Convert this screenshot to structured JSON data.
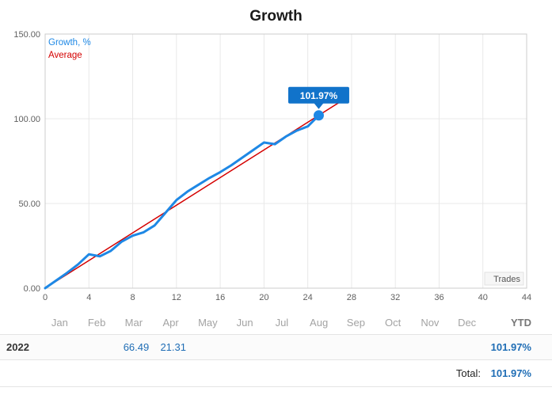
{
  "title": "Growth",
  "legend": {
    "growth": "Growth, %",
    "average": "Average"
  },
  "axis_label": "Trades",
  "tooltip": {
    "text": "101.97%"
  },
  "colors": {
    "growth": "#1e88e5",
    "average": "#d40000",
    "tooltip_bg": "#1173ca",
    "tooltip_text": "#ffffff",
    "grid": "#e8e8e8",
    "border": "#cccccc",
    "axis_text": "#5f5f5f",
    "trades_box_bg": "#f6f6f6",
    "trades_box_border": "#e2e2e2"
  },
  "chart_data": {
    "type": "line",
    "title": "Growth",
    "xlabel": "Trades",
    "ylabel": "Growth, %",
    "xlim": [
      0,
      44
    ],
    "ylim": [
      0,
      150
    ],
    "x_ticks": [
      0,
      4,
      8,
      12,
      16,
      20,
      24,
      28,
      32,
      36,
      40,
      44
    ],
    "y_ticks": [
      {
        "v": 0,
        "label": "0.00"
      },
      {
        "v": 50,
        "label": "50.00"
      },
      {
        "v": 100,
        "label": "100.00"
      },
      {
        "v": 150,
        "label": "150.00"
      }
    ],
    "grid": true,
    "legend_position": "top-left",
    "series": [
      {
        "name": "Average",
        "color": "#d40000",
        "width": 1.5,
        "points": [
          [
            0,
            0
          ],
          [
            27.4,
            111.8
          ]
        ]
      },
      {
        "name": "Growth, %",
        "color": "#1e88e5",
        "width": 3,
        "points": [
          [
            0,
            0
          ],
          [
            1,
            4.5
          ],
          [
            2,
            9
          ],
          [
            3,
            14
          ],
          [
            4,
            20
          ],
          [
            5,
            18.8
          ],
          [
            6,
            22
          ],
          [
            7,
            27.5
          ],
          [
            8,
            31
          ],
          [
            9,
            33
          ],
          [
            10,
            37
          ],
          [
            11,
            44.5
          ],
          [
            12,
            52
          ],
          [
            13,
            57
          ],
          [
            14,
            61
          ],
          [
            15,
            65
          ],
          [
            16,
            68.5
          ],
          [
            17,
            72.5
          ],
          [
            18,
            77
          ],
          [
            19,
            81.5
          ],
          [
            20,
            86
          ],
          [
            21,
            85
          ],
          [
            22,
            89.5
          ],
          [
            23,
            93
          ],
          [
            24,
            95.5
          ],
          [
            25,
            101.97
          ]
        ]
      }
    ],
    "last_value": 101.97,
    "last_value_label": "101.97%"
  },
  "table": {
    "months": [
      "Jan",
      "Feb",
      "Mar",
      "Apr",
      "May",
      "Jun",
      "Jul",
      "Aug",
      "Sep",
      "Oct",
      "Nov",
      "Dec"
    ],
    "ytd_header": "YTD",
    "rows": [
      {
        "year": "2022",
        "values": [
          "",
          "",
          "66.49",
          "21.31",
          "",
          "",
          "",
          "",
          "",
          "",
          "",
          ""
        ],
        "ytd": "101.97%"
      }
    ],
    "total_label": "Total:",
    "total_value": "101.97%"
  }
}
